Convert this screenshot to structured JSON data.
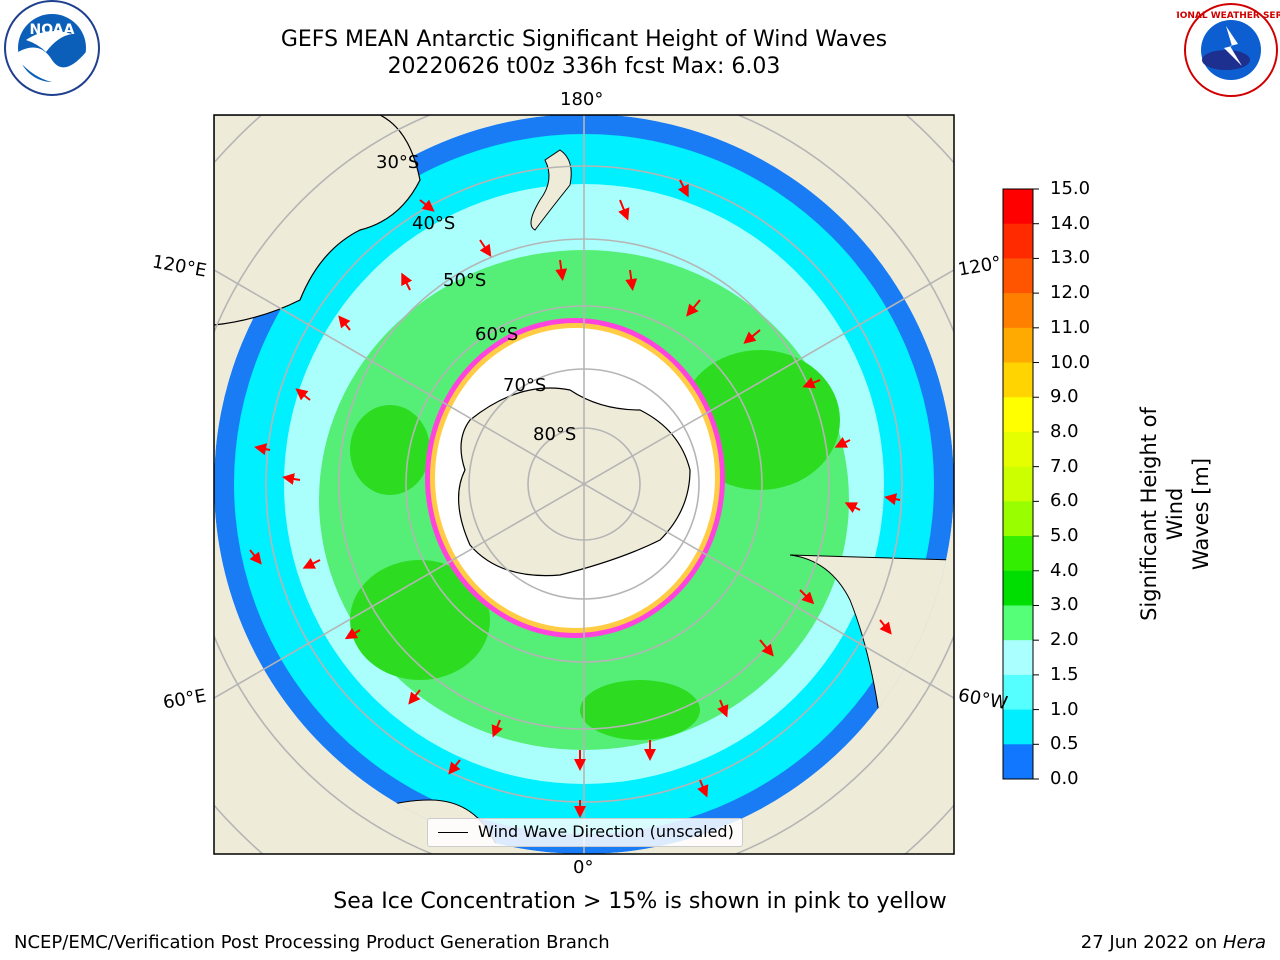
{
  "header": {
    "title_line1": "GEFS MEAN Antarctic Significant Height of Wind Waves",
    "title_line2": "20220626 t00z 336h fcst   Max: 6.03"
  },
  "map": {
    "projection": "south polar stereographic",
    "longitude_labels": {
      "top": "180°",
      "bottom": "0°",
      "left_upper": "120°E",
      "left_lower": "60°E",
      "right_upper": "120°",
      "right_lower": "60°W"
    },
    "latitude_labels": [
      "30°S",
      "40°S",
      "50°S",
      "60°S",
      "70°S",
      "80°S"
    ],
    "legend_label": "Wind Wave Direction (unscaled)",
    "arrow_color": "#ff0000"
  },
  "colorbar": {
    "label_line1": "Significant Height of Wind",
    "label_line2": "Waves [m]",
    "ticks": [
      "15.0",
      "14.0",
      "13.0",
      "12.0",
      "11.0",
      "10.0",
      "9.0",
      "8.0",
      "7.0",
      "6.0",
      "5.0",
      "4.0",
      "3.0",
      "2.0",
      "1.5",
      "1.0",
      "0.5",
      "0.0"
    ],
    "colors": [
      "#ff0000",
      "#ff2a00",
      "#ff5500",
      "#ff7f00",
      "#ffaa00",
      "#ffd400",
      "#ffff00",
      "#e6ff00",
      "#ccff00",
      "#99ff00",
      "#33ee00",
      "#00dd00",
      "#55ff77",
      "#aaffff",
      "#55ffff",
      "#00eeff",
      "#1177ff",
      "#0000ff"
    ]
  },
  "footer": {
    "note": "Sea Ice Concentration > 15% is shown in pink to yellow",
    "credit": "NCEP/EMC/Verification Post Processing Product Generation Branch",
    "date_prefix": "27 Jun 2022 on ",
    "date_machine": "Hera"
  },
  "logos": {
    "noaa_text": "NOAA",
    "nws_text": "NATIONAL WEATHER SERVICE"
  }
}
